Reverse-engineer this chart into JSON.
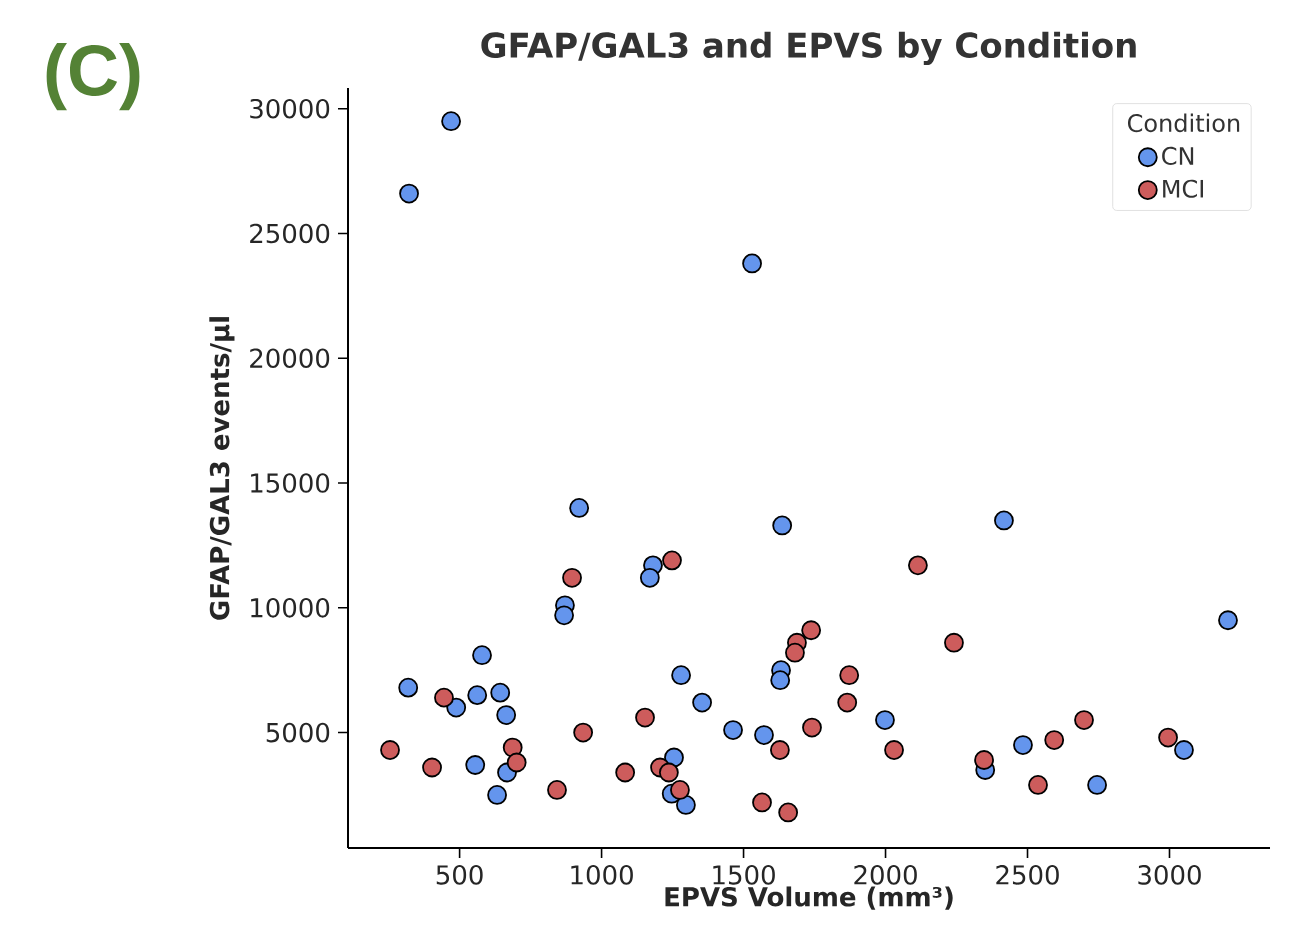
{
  "chart_data": {
    "type": "scatter",
    "title": "GFAP/GAL3 and EPVS by Condition",
    "xlabel": "EPVS Volume (mm³)",
    "ylabel": "GFAP/GAL3 events/µl",
    "legend_title": "Condition",
    "annotations": [
      "(C)"
    ],
    "xlim": [
      107,
      3354
    ],
    "ylim": [
      374,
      30830
    ],
    "xticks": [
      500,
      1000,
      1500,
      2000,
      2500,
      3000
    ],
    "yticks": [
      5000,
      10000,
      15000,
      20000,
      25000,
      30000
    ],
    "legend": "top right",
    "grid": false,
    "marker": "circle",
    "series": [
      {
        "name": "CN",
        "color": "#6495ed",
        "x": [
          322,
          470,
          1530,
          921,
          1636,
          2417,
          1181,
          1170,
          871,
          868,
          3206,
          579,
          319,
          562,
          643,
          488,
          664,
          1280,
          1632,
          1629,
          1354,
          1463,
          1572,
          1998,
          2484,
          3051,
          2351,
          2745,
          555,
          667,
          632,
          1255,
          1247,
          1297
        ],
        "values": [
          26600,
          29500,
          23800,
          14000,
          13300,
          13500,
          11700,
          11200,
          10100,
          9700,
          9500,
          8100,
          6800,
          6500,
          6600,
          6000,
          5700,
          7300,
          7500,
          7100,
          6200,
          5100,
          4900,
          5500,
          4500,
          4300,
          3500,
          2900,
          3700,
          3400,
          2500,
          4000,
          2550,
          2100
        ]
      },
      {
        "name": "MCI",
        "color": "#cd5c5c",
        "x": [
          255,
          403,
          445,
          687,
          701,
          843,
          896,
          935,
          1083,
          1153,
          1248,
          1206,
          1237,
          1276,
          1565,
          1657,
          1628,
          1741,
          1688,
          1681,
          1738,
          1872,
          1865,
          2030,
          2114,
          2241,
          2347,
          2537,
          2594,
          2699,
          2995
        ],
        "values": [
          4300,
          3600,
          6400,
          4400,
          3800,
          2700,
          11200,
          5000,
          3400,
          5600,
          11900,
          3600,
          3400,
          2700,
          2200,
          1800,
          4300,
          5200,
          8600,
          8200,
          9100,
          7300,
          6200,
          4300,
          11700,
          8600,
          3900,
          2900,
          4700,
          5500,
          4800
        ]
      }
    ]
  }
}
